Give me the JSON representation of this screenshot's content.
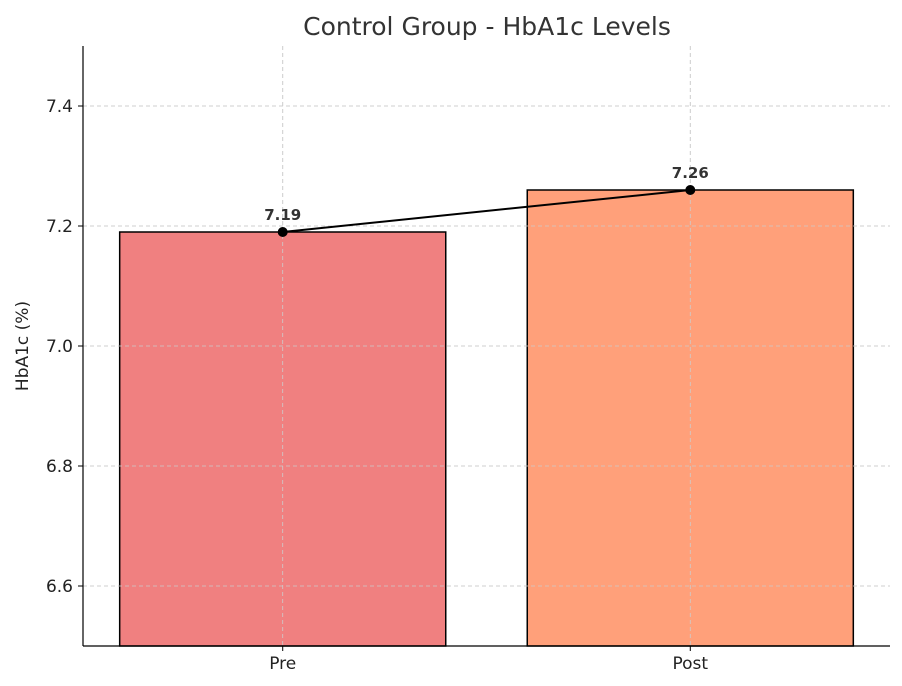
{
  "chart_data": {
    "type": "bar",
    "title": "Control Group - HbA1c Levels",
    "xlabel": "",
    "ylabel": "HbA1c (%)",
    "categories": [
      "Pre",
      "Post"
    ],
    "values": [
      7.19,
      7.26
    ],
    "data_labels": [
      "7.19",
      "7.26"
    ],
    "colors": [
      "#F08080",
      "#FFA07A"
    ],
    "line_color": "#000000",
    "ylim": [
      6.5,
      7.5
    ],
    "xlim": [
      -0.49,
      1.49
    ],
    "bar_width": 0.8,
    "yticks": [
      6.6,
      6.8,
      7.0,
      7.2,
      7.4
    ],
    "ytick_labels": [
      "6.6",
      "6.8",
      "7.0",
      "7.2",
      "7.4"
    ],
    "grid": true,
    "overlay": "line connecting bar tops with markers"
  }
}
